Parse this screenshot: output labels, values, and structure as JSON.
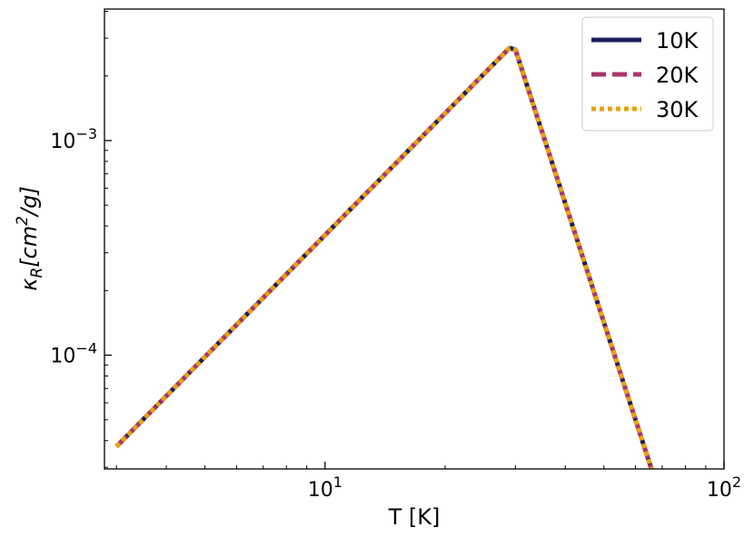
{
  "chart_data": {
    "type": "line",
    "title": "",
    "xlabel": "T [K]",
    "ylabel_main": "κ",
    "ylabel_sub": "R",
    "ylabel_rest": "[cm",
    "ylabel_sup": "2",
    "ylabel_end": "/g]",
    "xscale": "log",
    "yscale": "log",
    "xlim": [
      2.8,
      100
    ],
    "ylim": [
      2.95e-05,
      0.0041
    ],
    "grid": false,
    "legend_position": "top-right",
    "x_ticks": [
      {
        "value": 10,
        "base": "10",
        "exp": "1"
      },
      {
        "value": 100,
        "base": "10",
        "exp": "2"
      }
    ],
    "y_ticks": [
      {
        "value": 0.001,
        "base": "10",
        "exp": "−3"
      },
      {
        "value": 0.0001,
        "base": "10",
        "exp": "−4"
      }
    ],
    "x_minor_ticks": [
      3,
      4,
      5,
      6,
      7,
      8,
      9,
      20,
      30,
      40,
      50,
      60,
      70,
      80,
      90
    ],
    "y_minor_ticks": [
      3e-05,
      4e-05,
      5e-05,
      6e-05,
      7e-05,
      8e-05,
      9e-05,
      0.0002,
      0.0003,
      0.0004,
      0.0005,
      0.0006,
      0.0007,
      0.0008,
      0.0009,
      0.002,
      0.003,
      0.004
    ],
    "series": [
      {
        "name": "10K",
        "color": "#1c1d5e",
        "dash": "solid",
        "x": [
          3.0,
          29.0,
          30.0,
          66.0
        ],
        "y": [
          3.75e-05,
          0.0027,
          0.00265,
          2.9e-05
        ]
      },
      {
        "name": "20K",
        "color": "#a8356b",
        "dash": "dashed",
        "x": [
          3.0,
          29.0,
          30.0,
          66.0
        ],
        "y": [
          3.75e-05,
          0.0027,
          0.00265,
          2.9e-05
        ]
      },
      {
        "name": "30K",
        "color": "#e8a20f",
        "dash": "dotted",
        "x": [
          3.0,
          29.0,
          30.0,
          66.0
        ],
        "y": [
          3.75e-05,
          0.0027,
          0.00265,
          2.9e-05
        ]
      }
    ]
  }
}
